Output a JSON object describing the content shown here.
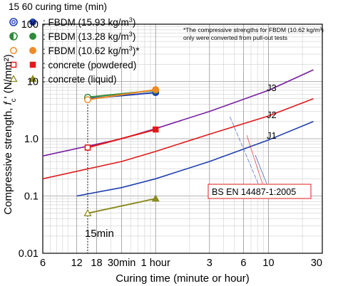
{
  "chart_data": {
    "type": "line",
    "xlabel": "Curing time (minute or hour)",
    "ylabel": "Compressive strength, f<sub>c</sub>' (N/mm²)",
    "ylabel_parts": {
      "main": "Compressive strength, ",
      "sym": "f",
      "sub": "c",
      "tail": "' (N/mm²)"
    },
    "xscale": "log",
    "yscale": "log",
    "x_unit": "minutes",
    "xlim": [
      6,
      1800
    ],
    "ylim": [
      0.01,
      100
    ],
    "grid": true,
    "x_ticks": [
      {
        "value": 6,
        "label": "6"
      },
      {
        "value": 12,
        "label": "12"
      },
      {
        "value": 18,
        "label": "18"
      },
      {
        "value": 30,
        "label": "30min"
      },
      {
        "value": 60,
        "label": "1 hour"
      },
      {
        "value": 180,
        "label": "3"
      },
      {
        "value": 360,
        "label": "6"
      },
      {
        "value": 600,
        "label": "10"
      },
      {
        "value": 1800,
        "label": "30"
      }
    ],
    "y_ticks": [
      {
        "value": 100,
        "label": "100"
      },
      {
        "value": 10,
        "label": "10"
      },
      {
        "value": 1,
        "label": "1.0"
      },
      {
        "value": 0.1,
        "label": "0.1"
      },
      {
        "value": 0.01,
        "label": "0.01"
      }
    ],
    "legend": {
      "placement": "top-left",
      "header": "15   60 curing time (min)",
      "entries": [
        {
          "label": "FBDM (15.93 kg/m",
          "sup": "3",
          "tail": ")",
          "color": "#1f3fae",
          "marker": "circle-double"
        },
        {
          "label": "FBDM (13.28 kg/m",
          "sup": "3",
          "tail": ")",
          "color": "#2e8b3a",
          "marker": "circle-half"
        },
        {
          "label": "FBDM (10.62 kg/m",
          "sup": "3",
          "tail": ")*",
          "color": "#f08a24",
          "marker": "circle"
        },
        {
          "label": "concrete (powdered)",
          "sup": "",
          "tail": "",
          "color": "#e01a1a",
          "marker": "square"
        },
        {
          "label": "concrete (liquid)",
          "sup": "",
          "tail": "",
          "color": "#8a8a1e",
          "marker": "triangle"
        }
      ],
      "prefix": ": "
    },
    "note_lines": [
      "*The compressive strengths for FBDM (10.62 kg/m³)",
      "only were converted from pull-out tests"
    ],
    "series": [
      {
        "name": "FBDM (15.93 kg/m³)",
        "color": "#1f3fae",
        "x": [
          15,
          60
        ],
        "y": [
          5.0,
          6.4
        ]
      },
      {
        "name": "FBDM (13.28 kg/m³)",
        "color": "#2e8b3a",
        "x": [
          15,
          60
        ],
        "y": [
          5.3,
          7.0
        ]
      },
      {
        "name": "FBDM (10.62 kg/m³)",
        "color": "#f08a24",
        "x": [
          15,
          60
        ],
        "y": [
          4.8,
          7.2
        ]
      },
      {
        "name": "concrete (powdered)",
        "color": "#e01a1a",
        "x": [
          15,
          60
        ],
        "y": [
          0.7,
          1.45
        ]
      },
      {
        "name": "concrete (liquid)",
        "color": "#8a8a1e",
        "x": [
          15,
          60
        ],
        "y": [
          0.05,
          0.09
        ]
      }
    ],
    "standard_curves": [
      {
        "name": "J1",
        "color": "#1f3fae",
        "x": [
          12,
          30,
          60,
          180,
          600,
          1500
        ],
        "y": [
          0.1,
          0.14,
          0.2,
          0.4,
          0.95,
          2.0
        ]
      },
      {
        "name": "J2",
        "color": "#e01a1a",
        "x": [
          6,
          30,
          60,
          180,
          600,
          1500
        ],
        "y": [
          0.2,
          0.4,
          0.6,
          1.2,
          2.5,
          5.0
        ]
      },
      {
        "name": "J3",
        "color": "#7a1fa0",
        "x": [
          6,
          30,
          60,
          180,
          600,
          1500
        ],
        "y": [
          0.5,
          1.0,
          1.5,
          3.0,
          7.0,
          16.0
        ]
      }
    ],
    "annotations": {
      "standard_label": "BS EN 14487-1:2005",
      "time_marker_label": "15min",
      "time_marker_x": 15
    }
  }
}
